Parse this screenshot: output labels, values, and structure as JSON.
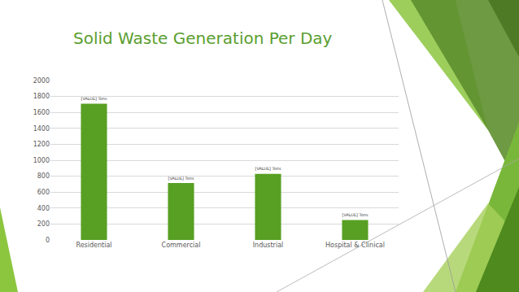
{
  "chart_data": {
    "type": "bar",
    "title": "Solid Waste Generation Per Day",
    "categories": [
      "Residential",
      "Commercial",
      "Industrial",
      "Hospital & Clinical"
    ],
    "values": [
      1710,
      715,
      830,
      250
    ],
    "value_labels": [
      "[VALUE] Tons",
      "[VALUE] Tons",
      "[VALUE] Tons",
      "[VALUE] Tons"
    ],
    "data_labels": true,
    "color": "#58a023",
    "ylim": [
      0,
      2000
    ],
    "yticks": [
      0,
      200,
      400,
      600,
      800,
      1000,
      1200,
      1400,
      1600,
      1800,
      2000
    ],
    "grid": true
  }
}
